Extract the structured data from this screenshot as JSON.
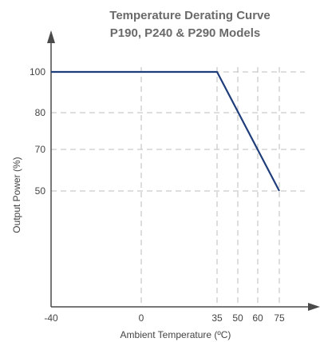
{
  "chart_data": {
    "type": "line",
    "title_line1": "Temperature Derating Curve",
    "title_line2": "P190, P240 & P290 Models",
    "xlabel": "Ambient Temperature (ºC)",
    "ylabel": "Output Power (%)",
    "x_ticks": [
      -40,
      0,
      35,
      50,
      60,
      75
    ],
    "y_ticks": [
      50,
      70,
      80,
      100
    ],
    "grid": true,
    "series": [
      {
        "x": [
          -40,
          35,
          75
        ],
        "y": [
          100,
          100,
          50
        ],
        "color": "#1f3d7a"
      }
    ]
  }
}
